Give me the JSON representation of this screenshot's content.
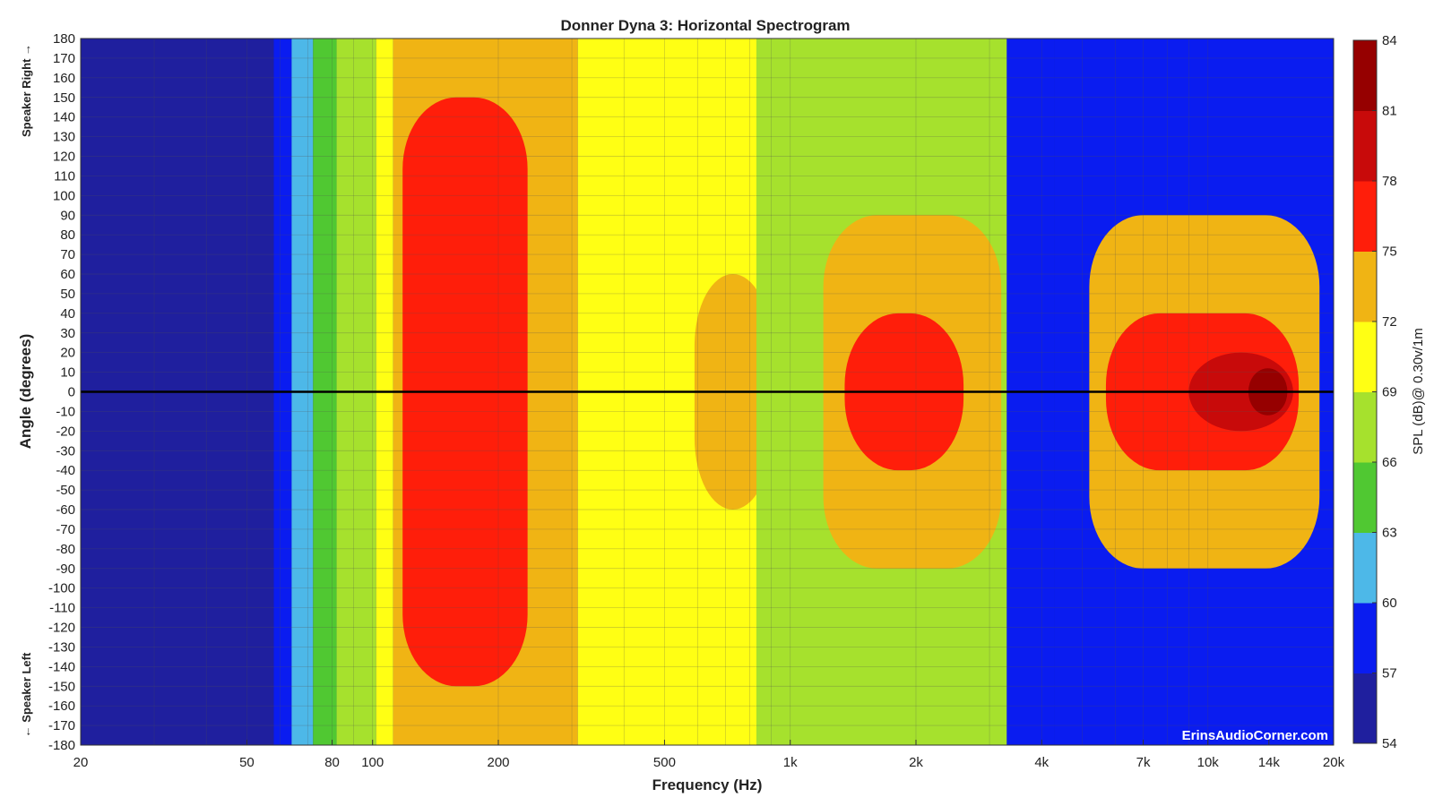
{
  "chart_data": {
    "type": "heatmap",
    "title": "Donner Dyna 3: Horizontal Spectrogram",
    "xlabel": "Frequency (Hz)",
    "ylabel": "Angle (degrees)",
    "x_scale": "log",
    "xlim": [
      20,
      20000
    ],
    "ylim": [
      -180,
      180
    ],
    "x_ticks": [
      {
        "value": 20,
        "label": "20"
      },
      {
        "value": 50,
        "label": "50"
      },
      {
        "value": 80,
        "label": "80"
      },
      {
        "value": 100,
        "label": "100"
      },
      {
        "value": 200,
        "label": "200"
      },
      {
        "value": 500,
        "label": "500"
      },
      {
        "value": 1000,
        "label": "1k"
      },
      {
        "value": 2000,
        "label": "2k"
      },
      {
        "value": 4000,
        "label": "4k"
      },
      {
        "value": 7000,
        "label": "7k"
      },
      {
        "value": 10000,
        "label": "10k"
      },
      {
        "value": 14000,
        "label": "14k"
      },
      {
        "value": 20000,
        "label": "20k"
      }
    ],
    "y_ticks": [
      180,
      170,
      160,
      150,
      140,
      130,
      120,
      110,
      100,
      90,
      80,
      70,
      60,
      50,
      40,
      30,
      20,
      10,
      0,
      -10,
      -20,
      -30,
      -40,
      -50,
      -60,
      -70,
      -80,
      -90,
      -100,
      -110,
      -120,
      -130,
      -140,
      -150,
      -160,
      -170,
      -180
    ],
    "side_labels": {
      "top": "Speaker Right →",
      "bottom": "← Speaker Left"
    },
    "colorbar": {
      "label": "SPL (dB)@ 0.30v/1m",
      "levels": [
        54,
        57,
        60,
        63,
        66,
        69,
        72,
        75,
        78,
        81,
        84
      ],
      "colors": [
        "#1f1f9e",
        "#0a1cf0",
        "#4db8e8",
        "#50c832",
        "#a6e12d",
        "#ffff14",
        "#f0b414",
        "#ff1e0a",
        "#c80a0a",
        "#960000"
      ]
    },
    "reference_line": {
      "angle": 0,
      "color": "#000000"
    },
    "regions_db": [
      {
        "f_from": 20,
        "f_to": 58,
        "angle_span": 180,
        "level_db": 55
      },
      {
        "f_from": 58,
        "f_to": 64,
        "angle_span": 180,
        "level_db": 58
      },
      {
        "f_from": 64,
        "f_to": 72,
        "angle_span": 180,
        "level_db": 61
      },
      {
        "f_from": 72,
        "f_to": 82,
        "angle_span": 180,
        "level_db": 64
      },
      {
        "f_from": 82,
        "f_to": 102,
        "angle_span": 180,
        "level_db": 67
      },
      {
        "f_from": 102,
        "f_to": 112,
        "angle_span": 180,
        "level_db": 70
      },
      {
        "f_from": 112,
        "f_to": 310,
        "angle_span": 180,
        "level_db": 73
      },
      {
        "f_from": 118,
        "f_to": 235,
        "angle_span": 150,
        "level_db": 76
      },
      {
        "f_from": 310,
        "f_to": 830,
        "angle_span": 180,
        "level_db": 70
      },
      {
        "f_from": 590,
        "f_to": 900,
        "angle_span": 60,
        "level_db": 73
      },
      {
        "f_from": 830,
        "f_to": 3300,
        "angle_span": 180,
        "level_db": 67
      },
      {
        "f_from": 1200,
        "f_to": 3200,
        "angle_span": 90,
        "level_db": 73
      },
      {
        "f_from": 1350,
        "f_to": 2600,
        "angle_span": 40,
        "level_db": 76
      },
      {
        "f_from": 3300,
        "f_to": 4300,
        "angle_span": 180,
        "level_db": 58
      },
      {
        "f_from": 4300,
        "f_to": 20000,
        "angle_span": 180,
        "level_db": 58
      },
      {
        "f_from": 5200,
        "f_to": 18500,
        "angle_span": 90,
        "level_db": 72
      },
      {
        "f_from": 5700,
        "f_to": 16500,
        "angle_span": 40,
        "level_db": 76
      },
      {
        "f_from": 9000,
        "f_to": 16000,
        "angle_span": 20,
        "level_db": 79
      },
      {
        "f_from": 12500,
        "f_to": 15500,
        "angle_span": 12,
        "level_db": 82
      }
    ],
    "grid": true,
    "legend": "right colorbar"
  },
  "watermark": "ErinsAudioCorner.com"
}
